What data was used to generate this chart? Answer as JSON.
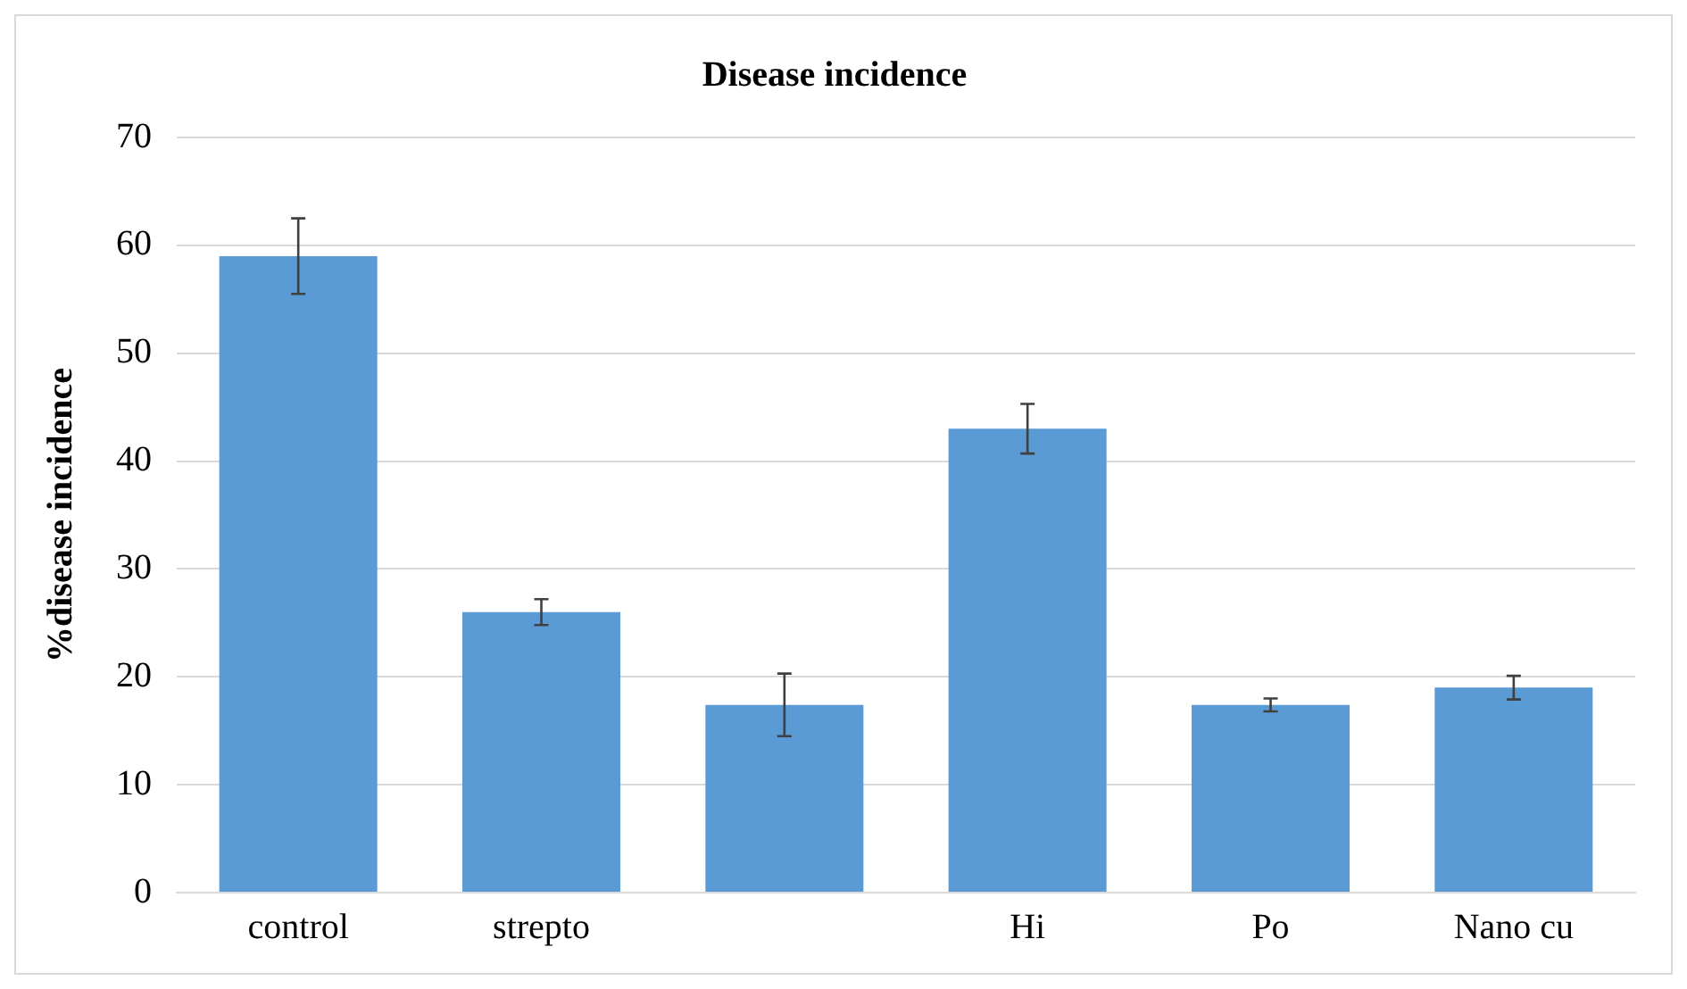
{
  "chart_data": {
    "type": "bar",
    "title": "Disease incidence",
    "ylabel": "%disease incidence",
    "categories": [
      "control",
      "strepto",
      null,
      "Hi",
      "Po",
      "Nano cu"
    ],
    "values": [
      59,
      26,
      17.4,
      43,
      17.4,
      19
    ],
    "errors": [
      3.5,
      1.2,
      2.9,
      2.3,
      0.6,
      1.1
    ],
    "color": "#5b9bd5",
    "ylim": [
      0,
      70
    ],
    "yticks": [
      0,
      10,
      20,
      30,
      40,
      50,
      60,
      70
    ],
    "grid": "y",
    "legend": false
  }
}
